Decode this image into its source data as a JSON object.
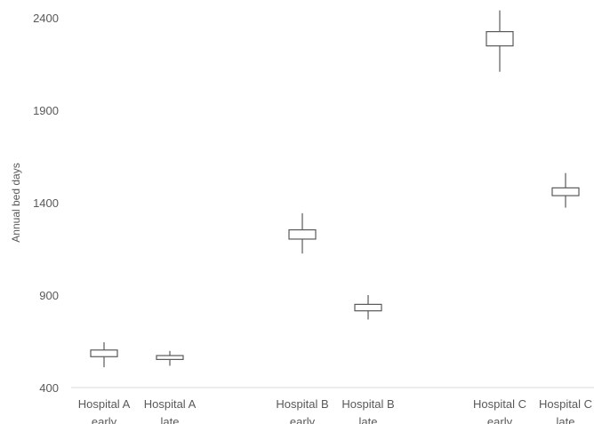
{
  "chart_data": {
    "type": "boxplot",
    "title": "",
    "xlabel": "",
    "ylabel": "Annual bed days",
    "ylim": [
      400,
      2400
    ],
    "yticks": [
      400,
      900,
      1400,
      1900,
      2400
    ],
    "grid": false,
    "legend": "none",
    "box_color": "#595959",
    "categories": [
      {
        "label": [
          "Hospital A",
          "early"
        ],
        "min": 510,
        "q1": 567,
        "q3": 603,
        "max": 645
      },
      {
        "label": [
          "Hospital A",
          "late"
        ],
        "min": 518,
        "q1": 552,
        "q3": 573,
        "max": 598
      },
      {
        "label": [
          "Hospital B",
          "early"
        ],
        "min": 1125,
        "q1": 1203,
        "q3": 1253,
        "max": 1343
      },
      {
        "label": [
          "Hospital B",
          "late"
        ],
        "min": 768,
        "q1": 815,
        "q3": 850,
        "max": 900
      },
      {
        "label": [
          "Hospital C",
          "early"
        ],
        "min": 2108,
        "q1": 2248,
        "q3": 2325,
        "max": 2440
      },
      {
        "label": [
          "Hospital C",
          "late"
        ],
        "min": 1373,
        "q1": 1438,
        "q3": 1480,
        "max": 1560
      }
    ]
  }
}
